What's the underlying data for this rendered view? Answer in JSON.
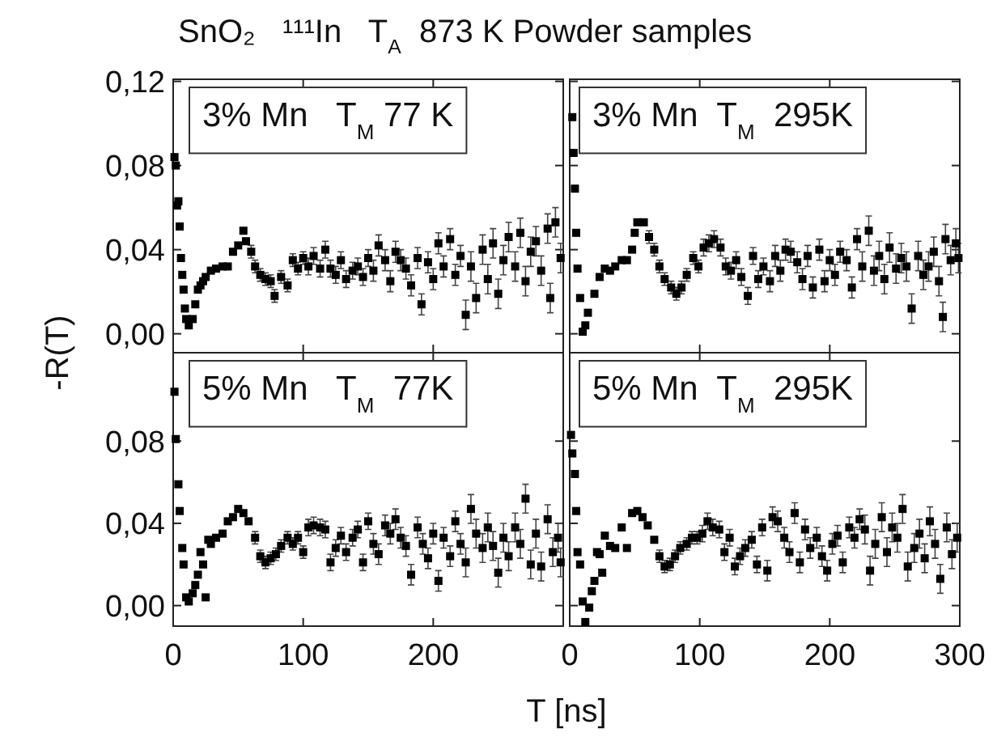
{
  "chart_data": [
    {
      "type": "scatter",
      "title": "SnO₂   ¹¹¹In   T$_{A}$  873 K Powder samples",
      "ylabel": "-R(T)",
      "annotations": [
        "3% Mn   T$_{M}$ 77 K"
      ],
      "xlim": [
        0,
        300
      ],
      "ylim": [
        -0.009,
        0.121
      ],
      "xticks": [
        {
          "value": 0,
          "label": null
        },
        {
          "value": 100,
          "label": null
        },
        {
          "value": 200,
          "label": null
        },
        {
          "value": 300,
          "label": null
        }
      ],
      "yticks": [
        {
          "value": 0,
          "label": "0,00"
        },
        {
          "value": 0.04,
          "label": "0,04"
        },
        {
          "value": 0.08,
          "label": "0,08"
        },
        {
          "value": 0.12,
          "label": "0,12"
        }
      ],
      "tick_labels": "y",
      "marker": "square",
      "series": [
        {
          "color": "#000000",
          "x": [
            1,
            2,
            3,
            4,
            5,
            6,
            7,
            8,
            9,
            10,
            12,
            15,
            17,
            19,
            21,
            23,
            25,
            29,
            33,
            38,
            42,
            46,
            50,
            54,
            56,
            60,
            63,
            67,
            71,
            75,
            78,
            83,
            88,
            92,
            96,
            100,
            104,
            108,
            113,
            117,
            121,
            125,
            129,
            133,
            138,
            142,
            146,
            150,
            154,
            158,
            163,
            167,
            171,
            175,
            179,
            183,
            188,
            191,
            196,
            200,
            204,
            208,
            213,
            217,
            221,
            225,
            229,
            233,
            238,
            242,
            246,
            250,
            254,
            258,
            263,
            267,
            271,
            275,
            279,
            283,
            288,
            290,
            294,
            298
          ],
          "values": [
            0.084,
            0.08,
            0.061,
            0.063,
            0.051,
            0.036,
            0.028,
            0.021,
            0.012,
            0.007,
            0.004,
            0.007,
            0.014,
            0.021,
            0.023,
            0.025,
            0.027,
            0.03,
            0.031,
            0.032,
            0.032,
            0.039,
            0.042,
            0.049,
            0.044,
            0.039,
            0.032,
            0.028,
            0.026,
            0.025,
            0.018,
            0.027,
            0.023,
            0.035,
            0.031,
            0.036,
            0.032,
            0.037,
            0.031,
            0.04,
            0.031,
            0.028,
            0.035,
            0.026,
            0.03,
            0.032,
            0.027,
            0.036,
            0.03,
            0.042,
            0.035,
            0.025,
            0.039,
            0.035,
            0.031,
            0.023,
            0.036,
            0.014,
            0.034,
            0.026,
            0.043,
            0.032,
            0.045,
            0.028,
            0.037,
            0.009,
            0.032,
            0.017,
            0.04,
            0.026,
            0.043,
            0.019,
            0.035,
            0.046,
            0.032,
            0.048,
            0.025,
            0.039,
            0.044,
            0.03,
            0.05,
            0.017,
            0.053,
            0.036
          ],
          "errors": [
            null,
            null,
            null,
            null,
            null,
            null,
            null,
            null,
            null,
            null,
            null,
            null,
            null,
            null,
            null,
            null,
            null,
            null,
            null,
            null,
            null,
            null,
            null,
            null,
            null,
            0.003,
            0.003,
            0.003,
            0.003,
            0.003,
            0.003,
            0.003,
            0.003,
            0.003,
            0.003,
            0.003,
            0.004,
            0.004,
            0.004,
            0.004,
            0.004,
            0.004,
            0.004,
            0.004,
            0.004,
            0.004,
            0.004,
            0.004,
            0.005,
            0.005,
            0.005,
            0.005,
            0.005,
            0.005,
            0.005,
            0.005,
            0.005,
            0.005,
            0.005,
            0.005,
            0.005,
            0.005,
            0.005,
            0.005,
            0.005,
            0.007,
            0.007,
            0.007,
            0.007,
            0.007,
            0.007,
            0.007,
            0.007,
            0.007,
            0.007,
            0.007,
            0.007,
            0.007,
            0.007,
            0.007,
            0.007,
            0.007,
            0.007,
            0.007
          ]
        }
      ]
    },
    {
      "type": "scatter",
      "annotations": [
        "3% Mn  T$_{M}$  295K"
      ],
      "xlim": [
        0,
        300
      ],
      "ylim": [
        -0.009,
        0.121
      ],
      "xticks": [
        {
          "value": 0,
          "label": null
        },
        {
          "value": 100,
          "label": null
        },
        {
          "value": 200,
          "label": null
        },
        {
          "value": 300,
          "label": null
        }
      ],
      "yticks": [
        {
          "value": 0,
          "label": null
        },
        {
          "value": 0.04,
          "label": null
        },
        {
          "value": 0.08,
          "label": null
        },
        {
          "value": 0.12,
          "label": null
        }
      ],
      "tick_labels": false,
      "marker": "square",
      "series": [
        {
          "color": "#000000",
          "x": [
            2,
            3,
            4,
            5,
            6,
            8,
            10,
            12,
            14,
            19,
            23,
            27,
            31,
            35,
            40,
            44,
            48,
            50,
            52,
            57,
            61,
            65,
            69,
            73,
            78,
            82,
            86,
            90,
            95,
            99,
            103,
            107,
            111,
            116,
            120,
            124,
            128,
            132,
            137,
            141,
            145,
            149,
            154,
            158,
            162,
            166,
            170,
            175,
            179,
            183,
            187,
            192,
            196,
            200,
            204,
            208,
            213,
            217,
            221,
            225,
            230,
            234,
            238,
            242,
            246,
            251,
            255,
            259,
            263,
            268,
            272,
            276,
            280,
            284,
            287,
            289,
            293,
            297,
            299
          ],
          "values": [
            0.103,
            0.086,
            0.069,
            0.048,
            0.031,
            0.017,
            0.001,
            0.004,
            0.01,
            0.019,
            0.027,
            0.031,
            0.03,
            0.032,
            0.035,
            0.035,
            0.04,
            0.048,
            0.053,
            0.053,
            0.046,
            0.04,
            0.032,
            0.026,
            0.022,
            0.019,
            0.022,
            0.028,
            0.036,
            0.032,
            0.041,
            0.043,
            0.045,
            0.041,
            0.032,
            0.03,
            0.035,
            0.027,
            0.018,
            0.037,
            0.026,
            0.032,
            0.025,
            0.037,
            0.03,
            0.04,
            0.039,
            0.034,
            0.026,
            0.037,
            0.022,
            0.04,
            0.025,
            0.035,
            0.028,
            0.039,
            0.035,
            0.022,
            0.045,
            0.032,
            0.049,
            0.03,
            0.037,
            0.026,
            0.041,
            0.031,
            0.036,
            0.032,
            0.012,
            0.037,
            0.028,
            0.032,
            0.039,
            0.025,
            0.008,
            0.045,
            0.035,
            0.043,
            0.036
          ],
          "errors": [
            null,
            null,
            null,
            null,
            null,
            null,
            null,
            null,
            null,
            null,
            null,
            null,
            null,
            null,
            null,
            null,
            null,
            null,
            null,
            null,
            0.003,
            0.003,
            0.003,
            0.003,
            0.003,
            0.003,
            0.003,
            0.003,
            0.003,
            0.003,
            0.004,
            0.004,
            0.004,
            0.004,
            0.004,
            0.004,
            0.004,
            0.004,
            0.004,
            0.004,
            0.004,
            0.004,
            0.005,
            0.005,
            0.005,
            0.005,
            0.005,
            0.005,
            0.005,
            0.005,
            0.005,
            0.005,
            0.005,
            0.005,
            0.005,
            0.005,
            0.005,
            0.005,
            0.005,
            0.007,
            0.007,
            0.007,
            0.007,
            0.007,
            0.007,
            0.007,
            0.007,
            0.007,
            0.007,
            0.007,
            0.007,
            0.007,
            0.007,
            0.007,
            0.007,
            0.007,
            0.007,
            0.007,
            0.007
          ]
        }
      ]
    },
    {
      "type": "scatter",
      "xlabel": "T [ns]",
      "annotations": [
        "5% Mn   T$_{M}$  77K"
      ],
      "xlim": [
        0,
        300
      ],
      "ylim": [
        -0.01,
        0.123
      ],
      "xticks": [
        0,
        100,
        200,
        {
          "value": 300,
          "label": null
        }
      ],
      "yticks": [
        {
          "value": 0,
          "label": "0,00"
        },
        {
          "value": 0.04,
          "label": "0,04"
        },
        {
          "value": 0.08,
          "label": "0,08"
        }
      ],
      "marker": "square",
      "series": [
        {
          "color": "#000000",
          "x": [
            1,
            2,
            4,
            5,
            7,
            8,
            10,
            12,
            15,
            17,
            19,
            21,
            23,
            25,
            27,
            29,
            33,
            38,
            42,
            46,
            50,
            54,
            58,
            63,
            67,
            71,
            75,
            79,
            83,
            88,
            92,
            96,
            100,
            104,
            108,
            113,
            117,
            121,
            125,
            129,
            133,
            138,
            142,
            146,
            150,
            154,
            158,
            163,
            167,
            171,
            175,
            179,
            183,
            188,
            192,
            196,
            200,
            204,
            208,
            213,
            217,
            221,
            225,
            229,
            233,
            238,
            242,
            246,
            250,
            254,
            258,
            263,
            267,
            271,
            275,
            279,
            283,
            288,
            292,
            296,
            298
          ],
          "values": [
            0.104,
            0.081,
            0.059,
            0.046,
            0.028,
            0.02,
            0.004,
            0.002,
            0.006,
            0.01,
            0.015,
            0.026,
            0.02,
            0.004,
            0.032,
            0.03,
            0.033,
            0.035,
            0.041,
            0.043,
            0.047,
            0.045,
            0.041,
            0.033,
            0.024,
            0.021,
            0.023,
            0.025,
            0.029,
            0.033,
            0.03,
            0.033,
            0.026,
            0.038,
            0.039,
            0.038,
            0.037,
            0.021,
            0.028,
            0.034,
            0.026,
            0.033,
            0.037,
            0.021,
            0.041,
            0.03,
            0.025,
            0.039,
            0.035,
            0.042,
            0.033,
            0.029,
            0.015,
            0.038,
            0.03,
            0.023,
            0.035,
            0.012,
            0.033,
            0.024,
            0.041,
            0.03,
            0.021,
            0.047,
            0.035,
            0.028,
            0.038,
            0.029,
            0.016,
            0.033,
            0.024,
            0.038,
            0.03,
            0.052,
            0.02,
            0.035,
            0.019,
            0.042,
            0.026,
            0.033,
            0.021
          ],
          "errors": [
            null,
            null,
            null,
            null,
            null,
            null,
            null,
            null,
            null,
            null,
            null,
            null,
            null,
            null,
            null,
            null,
            null,
            null,
            null,
            null,
            null,
            null,
            null,
            0.003,
            0.003,
            0.003,
            0.003,
            0.003,
            0.003,
            0.003,
            0.003,
            0.003,
            0.003,
            0.004,
            0.004,
            0.004,
            0.004,
            0.004,
            0.004,
            0.004,
            0.004,
            0.004,
            0.004,
            0.004,
            0.004,
            0.005,
            0.005,
            0.005,
            0.005,
            0.005,
            0.005,
            0.005,
            0.005,
            0.005,
            0.005,
            0.005,
            0.005,
            0.005,
            0.005,
            0.005,
            0.005,
            0.005,
            0.007,
            0.007,
            0.007,
            0.007,
            0.007,
            0.007,
            0.007,
            0.007,
            0.007,
            0.007,
            0.007,
            0.007,
            0.007,
            0.007,
            0.007,
            0.007,
            0.007,
            0.007,
            0.007
          ]
        }
      ]
    },
    {
      "type": "scatter",
      "annotations": [
        "5% Mn  T$_{M}$  295K"
      ],
      "xlim": [
        0,
        300
      ],
      "ylim": [
        -0.01,
        0.123
      ],
      "xticks": [
        0,
        100,
        200,
        300
      ],
      "yticks": [
        {
          "value": 0,
          "label": null
        },
        {
          "value": 0.04,
          "label": null
        },
        {
          "value": 0.08,
          "label": null
        }
      ],
      "tick_labels": "x",
      "marker": "square",
      "series": [
        {
          "color": "#000000",
          "x": [
            1,
            2,
            4,
            5,
            6,
            8,
            10,
            12,
            15,
            17,
            19,
            21,
            23,
            25,
            27,
            31,
            35,
            40,
            44,
            48,
            52,
            56,
            60,
            65,
            69,
            73,
            77,
            81,
            85,
            90,
            94,
            98,
            102,
            106,
            110,
            115,
            119,
            123,
            127,
            131,
            135,
            140,
            144,
            148,
            152,
            156,
            160,
            165,
            169,
            173,
            177,
            181,
            185,
            190,
            194,
            198,
            202,
            206,
            210,
            215,
            219,
            223,
            227,
            231,
            235,
            240,
            244,
            248,
            252,
            256,
            260,
            265,
            269,
            273,
            277,
            281,
            285,
            290,
            294,
            298
          ],
          "values": [
            0.083,
            0.074,
            0.064,
            0.046,
            0.026,
            0.02,
            0.002,
            -0.008,
            -0.001,
            0.007,
            0.012,
            0.026,
            0.025,
            0.016,
            0.034,
            0.029,
            0.028,
            0.038,
            0.028,
            0.045,
            0.046,
            0.043,
            0.039,
            0.032,
            0.024,
            0.019,
            0.02,
            0.024,
            0.028,
            0.03,
            0.033,
            0.033,
            0.035,
            0.041,
            0.038,
            0.037,
            0.026,
            0.033,
            0.019,
            0.024,
            0.028,
            0.032,
            0.02,
            0.038,
            0.017,
            0.043,
            0.041,
            0.033,
            0.026,
            0.045,
            0.021,
            0.037,
            0.028,
            0.033,
            0.024,
            0.017,
            0.03,
            0.034,
            0.021,
            0.038,
            0.033,
            0.042,
            0.037,
            0.017,
            0.03,
            0.043,
            0.026,
            0.038,
            0.033,
            0.047,
            0.019,
            0.028,
            0.035,
            0.023,
            0.041,
            0.03,
            0.013,
            0.038,
            0.025,
            0.033
          ],
          "errors": [
            null,
            null,
            null,
            null,
            null,
            null,
            null,
            null,
            null,
            null,
            null,
            null,
            null,
            null,
            null,
            null,
            null,
            null,
            null,
            null,
            null,
            null,
            null,
            null,
            0.003,
            0.003,
            0.003,
            0.003,
            0.003,
            0.003,
            0.003,
            0.003,
            0.004,
            0.004,
            0.004,
            0.004,
            0.004,
            0.004,
            0.004,
            0.004,
            0.004,
            0.004,
            0.004,
            0.004,
            0.005,
            0.005,
            0.005,
            0.005,
            0.005,
            0.005,
            0.005,
            0.005,
            0.005,
            0.005,
            0.005,
            0.005,
            0.005,
            0.005,
            0.005,
            0.005,
            0.005,
            0.005,
            0.007,
            0.007,
            0.007,
            0.007,
            0.007,
            0.007,
            0.007,
            0.007,
            0.007,
            0.007,
            0.007,
            0.007,
            0.007,
            0.007,
            0.007,
            0.007,
            0.007,
            0.007
          ]
        }
      ]
    }
  ]
}
